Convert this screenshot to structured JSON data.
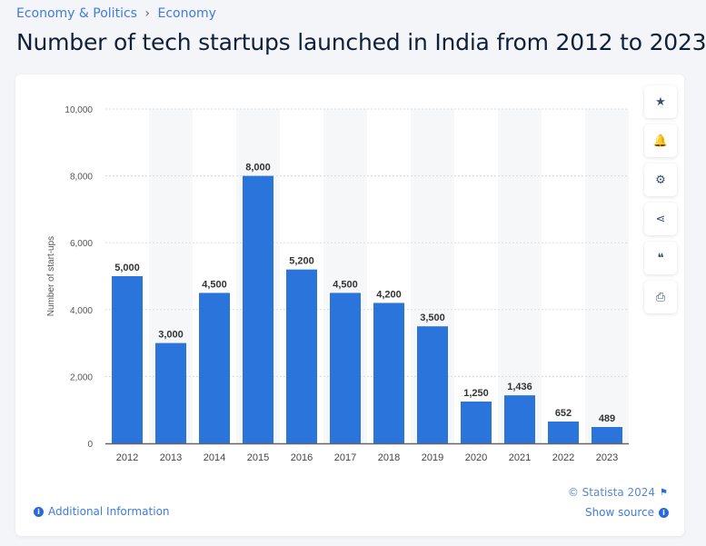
{
  "breadcrumb": {
    "items": [
      "Economy & Politics",
      "Economy"
    ],
    "separator": "›"
  },
  "title": "Number of tech startups launched in India from 2012 to 2023",
  "toolbar": [
    {
      "icon": "star-icon",
      "glyph": "★"
    },
    {
      "icon": "bell-icon",
      "glyph": "🔔"
    },
    {
      "icon": "gear-icon",
      "glyph": "⚙"
    },
    {
      "icon": "share-icon",
      "glyph": "⋖"
    },
    {
      "icon": "quote-icon",
      "glyph": "❝"
    },
    {
      "icon": "print-icon",
      "glyph": "⎙"
    }
  ],
  "footer": {
    "additional_info": "Additional Information",
    "copyright": "© Statista 2024",
    "show_source": "Show source"
  },
  "chart_data": {
    "type": "bar",
    "categories": [
      "2012",
      "2013",
      "2014",
      "2015",
      "2016",
      "2017",
      "2018",
      "2019",
      "2020",
      "2021",
      "2022",
      "2023"
    ],
    "values": [
      5000,
      3000,
      4500,
      8000,
      5200,
      4500,
      4200,
      3500,
      1250,
      1436,
      652,
      489
    ],
    "data_labels": [
      "5,000",
      "3,000",
      "4,500",
      "8,000",
      "5,200",
      "4,500",
      "4,200",
      "3,500",
      "1,250",
      "1,436",
      "652",
      "489"
    ],
    "ylabel": "Number of start-ups",
    "xlabel": "",
    "ylim": [
      0,
      10000
    ],
    "yticks": [
      0,
      2000,
      4000,
      6000,
      8000,
      10000
    ],
    "ytick_labels": [
      "0",
      "2,000",
      "4,000",
      "6,000",
      "8,000",
      "10,000"
    ],
    "grid": true,
    "bar_color": "#2a74db"
  }
}
